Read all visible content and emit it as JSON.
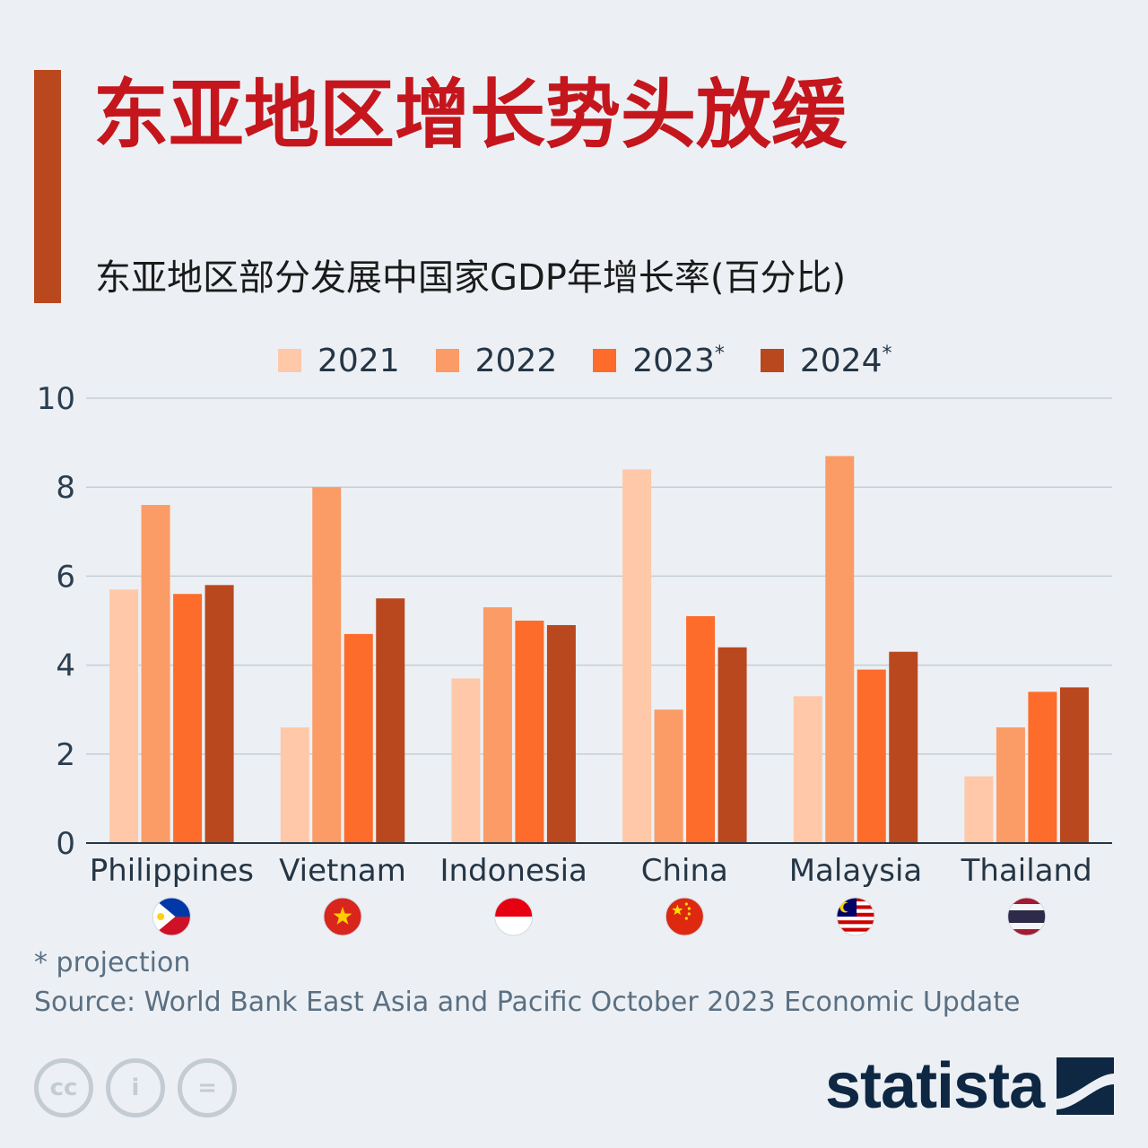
{
  "title": "东亚地区增长势头放缓",
  "subtitle": "东亚地区部分发展中国家GDP年增长率(百分比)",
  "legend": [
    {
      "label": "2021",
      "marker": "",
      "color": "#ffc8a8"
    },
    {
      "label": "2022",
      "marker": "",
      "color": "#fb9b66"
    },
    {
      "label": "2023",
      "marker": "*",
      "color": "#fd6c2a"
    },
    {
      "label": "2024",
      "marker": "*",
      "color": "#b9481f"
    }
  ],
  "chart_data": {
    "type": "bar",
    "categories": [
      "Philippines",
      "Vietnam",
      "Indonesia",
      "China",
      "Malaysia",
      "Thailand"
    ],
    "series": [
      {
        "name": "2021",
        "values": [
          5.7,
          2.6,
          3.7,
          8.4,
          3.3,
          1.5
        ]
      },
      {
        "name": "2022",
        "values": [
          7.6,
          8.0,
          5.3,
          3.0,
          8.7,
          2.6
        ]
      },
      {
        "name": "2023*",
        "values": [
          5.6,
          4.7,
          5.0,
          5.1,
          3.9,
          3.4
        ]
      },
      {
        "name": "2024*",
        "values": [
          5.8,
          5.5,
          4.9,
          4.4,
          4.3,
          3.5
        ]
      }
    ],
    "yticks": [
      0,
      2,
      4,
      6,
      8,
      10
    ],
    "ylim": [
      0,
      10
    ],
    "grid": true,
    "legend_position": "top"
  },
  "flags": [
    "philippines-flag-icon",
    "vietnam-flag-icon",
    "indonesia-flag-icon",
    "china-flag-icon",
    "malaysia-flag-icon",
    "thailand-flag-icon"
  ],
  "footnote": "* projection",
  "source": "Source: World Bank East Asia and Pacific October 2023 Economic Update",
  "license_icons": [
    {
      "name": "cc-icon",
      "glyph": "cc"
    },
    {
      "name": "attribution-icon",
      "glyph": "i"
    },
    {
      "name": "no-derivatives-icon",
      "glyph": "="
    }
  ],
  "brand": "statista"
}
